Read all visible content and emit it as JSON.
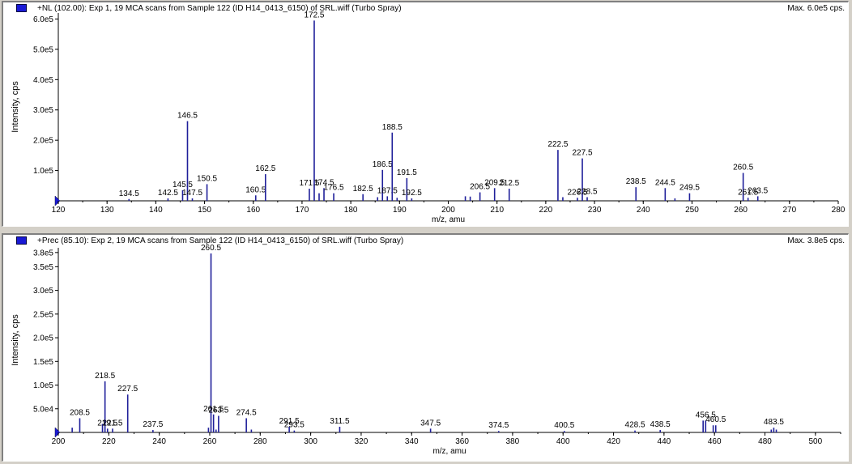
{
  "panels": [
    {
      "title": "+NL (102.00): Exp 1, 19 MCA scans from Sample 122 (ID H14_0413_6150) of SRL.wiff (Turbo Spray)",
      "max_label": "Max. 6.0e5 cps."
    },
    {
      "title": "+Prec (85.10): Exp 2, 19 MCA scans from Sample 122 (ID H14_0413_6150) of SRL.wiff (Turbo Spray)",
      "max_label": "Max. 3.8e5 cps."
    }
  ],
  "chart_data": [
    {
      "type": "bar",
      "xlabel": "m/z, amu",
      "ylabel": "Intensity, cps",
      "xlim": [
        120,
        280
      ],
      "ylim": [
        0,
        620000
      ],
      "x_ticks": [
        120,
        130,
        140,
        150,
        160,
        170,
        180,
        190,
        200,
        210,
        220,
        230,
        240,
        250,
        260,
        270,
        280
      ],
      "y_ticks": [
        {
          "v": 100000,
          "t": "1.0e5"
        },
        {
          "v": 200000,
          "t": "2.0e5"
        },
        {
          "v": 300000,
          "t": "3.0e5"
        },
        {
          "v": 400000,
          "t": "4.0e5"
        },
        {
          "v": 500000,
          "t": "5.0e5"
        },
        {
          "v": 600000,
          "t": "6.0e5"
        }
      ],
      "color": "#1f1f9a",
      "peaks": [
        {
          "x": 134.5,
          "y": 6000,
          "label": "134.5"
        },
        {
          "x": 142.5,
          "y": 8000,
          "label": "142.5"
        },
        {
          "x": 145.5,
          "y": 35000,
          "label": "145.5"
        },
        {
          "x": 146.5,
          "y": 263000,
          "label": "146.5"
        },
        {
          "x": 147.5,
          "y": 8000,
          "label": "147.5"
        },
        {
          "x": 150.5,
          "y": 55000,
          "label": "150.5"
        },
        {
          "x": 160.5,
          "y": 18000,
          "label": "160.5"
        },
        {
          "x": 162.5,
          "y": 88000,
          "label": "162.5"
        },
        {
          "x": 171.5,
          "y": 40000,
          "label": "171.5"
        },
        {
          "x": 172.5,
          "y": 595000,
          "label": "172.5"
        },
        {
          "x": 173.5,
          "y": 25000,
          "label": ""
        },
        {
          "x": 174.5,
          "y": 42000,
          "label": "174.5"
        },
        {
          "x": 176.5,
          "y": 25000,
          "label": "176.5"
        },
        {
          "x": 182.5,
          "y": 22000,
          "label": "182.5"
        },
        {
          "x": 185.5,
          "y": 12000,
          "label": ""
        },
        {
          "x": 186.5,
          "y": 102000,
          "label": "186.5"
        },
        {
          "x": 187.5,
          "y": 15000,
          "label": "187.5"
        },
        {
          "x": 188.5,
          "y": 225000,
          "label": "188.5"
        },
        {
          "x": 189.5,
          "y": 10000,
          "label": ""
        },
        {
          "x": 191.5,
          "y": 75000,
          "label": "191.5"
        },
        {
          "x": 192.5,
          "y": 8000,
          "label": "192.5"
        },
        {
          "x": 203.5,
          "y": 15000,
          "label": ""
        },
        {
          "x": 204.5,
          "y": 14000,
          "label": ""
        },
        {
          "x": 206.5,
          "y": 28000,
          "label": "206.5"
        },
        {
          "x": 209.5,
          "y": 42000,
          "label": "209.5"
        },
        {
          "x": 212.5,
          "y": 40000,
          "label": "212.5"
        },
        {
          "x": 222.5,
          "y": 168000,
          "label": "222.5"
        },
        {
          "x": 223.5,
          "y": 12000,
          "label": ""
        },
        {
          "x": 226.5,
          "y": 10000,
          "label": "226.5"
        },
        {
          "x": 227.5,
          "y": 140000,
          "label": "227.5"
        },
        {
          "x": 228.5,
          "y": 12000,
          "label": "228.5"
        },
        {
          "x": 238.5,
          "y": 45000,
          "label": "238.5"
        },
        {
          "x": 244.5,
          "y": 42000,
          "label": "244.5"
        },
        {
          "x": 246.5,
          "y": 8000,
          "label": ""
        },
        {
          "x": 249.5,
          "y": 25000,
          "label": "249.5"
        },
        {
          "x": 260.5,
          "y": 92000,
          "label": "260.5"
        },
        {
          "x": 261.5,
          "y": 10000,
          "label": "261.5"
        },
        {
          "x": 263.5,
          "y": 15000,
          "label": "263.5"
        }
      ]
    },
    {
      "type": "bar",
      "xlabel": "m/z, amu",
      "ylabel": "Intensity, cps",
      "xlim": [
        200,
        510
      ],
      "ylim": [
        0,
        390000
      ],
      "x_ticks": [
        200,
        220,
        240,
        260,
        280,
        300,
        320,
        340,
        360,
        380,
        400,
        420,
        440,
        460,
        480,
        500
      ],
      "y_ticks": [
        {
          "v": 50000,
          "t": "5.0e4"
        },
        {
          "v": 100000,
          "t": "1.0e5"
        },
        {
          "v": 150000,
          "t": "1.5e5"
        },
        {
          "v": 200000,
          "t": "2.0e5"
        },
        {
          "v": 250000,
          "t": "2.5e5"
        },
        {
          "v": 300000,
          "t": "3.0e5"
        },
        {
          "v": 350000,
          "t": "3.5e5"
        }
      ],
      "y_ticks_extra": {
        "v": 380000,
        "t": "3.8e5"
      },
      "color": "#1f1f9a",
      "peaks": [
        {
          "x": 205.5,
          "y": 10000,
          "label": ""
        },
        {
          "x": 208.5,
          "y": 30000,
          "label": "208.5"
        },
        {
          "x": 217.5,
          "y": 18000,
          "label": ""
        },
        {
          "x": 218.5,
          "y": 108000,
          "label": "218.5"
        },
        {
          "x": 219.5,
          "y": 8000,
          "label": "219.5"
        },
        {
          "x": 221.5,
          "y": 8000,
          "label": "221.5"
        },
        {
          "x": 227.5,
          "y": 80000,
          "label": "227.5"
        },
        {
          "x": 237.5,
          "y": 5000,
          "label": "237.5"
        },
        {
          "x": 259.5,
          "y": 10000,
          "label": ""
        },
        {
          "x": 260.5,
          "y": 378000,
          "label": "260.5"
        },
        {
          "x": 261.5,
          "y": 38000,
          "label": "261.5"
        },
        {
          "x": 262.5,
          "y": 6000,
          "label": ""
        },
        {
          "x": 263.5,
          "y": 35000,
          "label": "263.5"
        },
        {
          "x": 274.5,
          "y": 30000,
          "label": "274.5"
        },
        {
          "x": 276.5,
          "y": 6000,
          "label": ""
        },
        {
          "x": 291.5,
          "y": 12000,
          "label": "291.5"
        },
        {
          "x": 293.5,
          "y": 4000,
          "label": "293.5"
        },
        {
          "x": 311.5,
          "y": 12000,
          "label": "311.5"
        },
        {
          "x": 347.5,
          "y": 8000,
          "label": "347.5"
        },
        {
          "x": 374.5,
          "y": 3000,
          "label": "374.5"
        },
        {
          "x": 400.5,
          "y": 3000,
          "label": "400.5"
        },
        {
          "x": 428.5,
          "y": 4000,
          "label": "428.5"
        },
        {
          "x": 438.5,
          "y": 5000,
          "label": "438.5"
        },
        {
          "x": 455.5,
          "y": 25000,
          "label": ""
        },
        {
          "x": 456.5,
          "y": 25000,
          "label": "456.5"
        },
        {
          "x": 459.5,
          "y": 15000,
          "label": ""
        },
        {
          "x": 460.5,
          "y": 15000,
          "label": "460.5"
        },
        {
          "x": 482.5,
          "y": 6000,
          "label": ""
        },
        {
          "x": 483.5,
          "y": 10000,
          "label": "483.5"
        },
        {
          "x": 484.5,
          "y": 6000,
          "label": ""
        }
      ]
    }
  ]
}
